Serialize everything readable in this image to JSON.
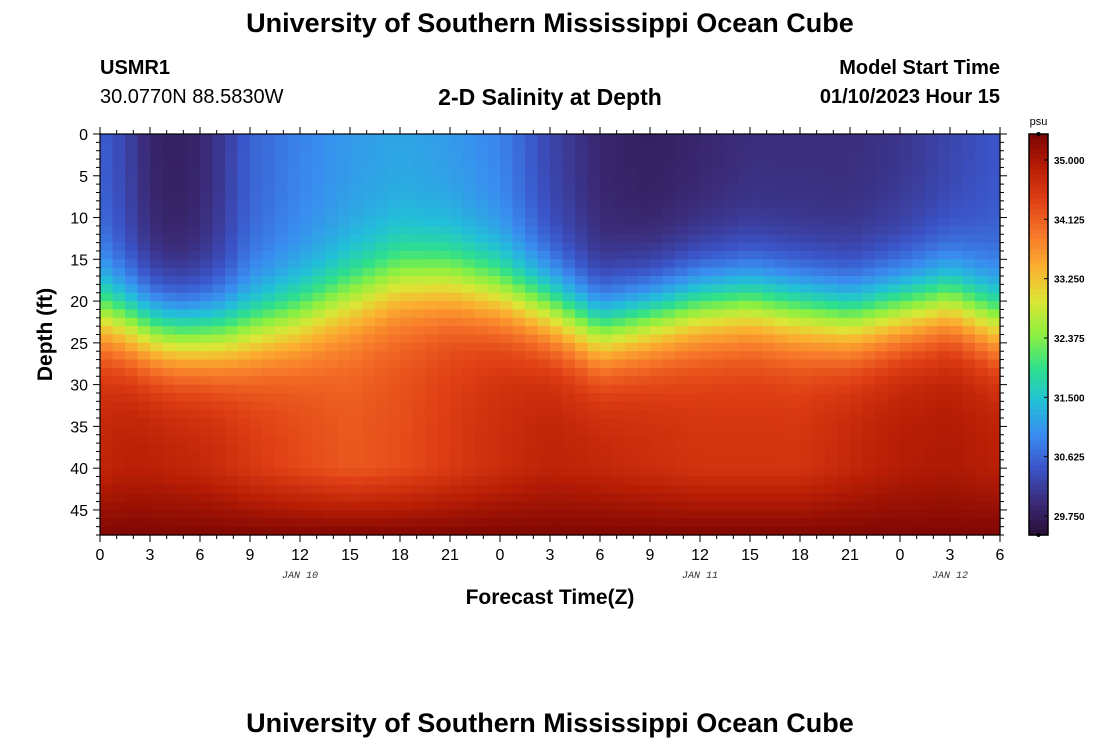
{
  "header": {
    "title": "University of Southern Mississippi Ocean Cube",
    "station": "USMR1",
    "coordinates": "30.0770N  88.5830W",
    "subtitle": "2-D Salinity at Depth",
    "start_label": "Model Start Time",
    "start_value": "01/10/2023 Hour 15"
  },
  "footer": {
    "title": "University of Southern Mississippi Ocean Cube"
  },
  "chart_data": {
    "type": "heatmap",
    "title": "2-D Salinity at Depth",
    "xlabel": "Forecast Time(Z)",
    "ylabel": "Depth (ft)",
    "x_ticks": [
      "0",
      "3",
      "6",
      "9",
      "12",
      "15",
      "18",
      "21",
      "0",
      "3",
      "6",
      "9",
      "12",
      "15",
      "18",
      "21",
      "0",
      "3",
      "6"
    ],
    "x_range_hours": [
      0,
      54
    ],
    "date_labels": [
      {
        "label": "JAN 10",
        "hour": 12
      },
      {
        "label": "JAN 11",
        "hour": 36
      },
      {
        "label": "JAN 12",
        "hour": 51
      }
    ],
    "y_ticks": [
      0,
      5,
      10,
      15,
      20,
      25,
      30,
      35,
      40,
      45
    ],
    "ylim": [
      0,
      48
    ],
    "colorbar": {
      "unit": "psu",
      "ticks": [
        "35.000",
        "34.125",
        "33.250",
        "32.375",
        "31.500",
        "30.625",
        "29.750"
      ],
      "range": [
        29.5,
        35.4
      ],
      "colors": [
        "#2a0e36",
        "#3b2c7a",
        "#3b54c8",
        "#3a8cf0",
        "#22c0d8",
        "#2fe08a",
        "#8ef040",
        "#dce636",
        "#fbb030",
        "#f7772a",
        "#e04015",
        "#b81e05",
        "#7a0403"
      ]
    },
    "salinity_model": {
      "time_hours": [
        0,
        1.5,
        3,
        4.5,
        6,
        7.5,
        9,
        12,
        15,
        18,
        21,
        24,
        27,
        30,
        33,
        36,
        39,
        42,
        45,
        48,
        51,
        54
      ],
      "surface_psu": [
        30.6,
        30.3,
        29.9,
        29.8,
        29.9,
        30.2,
        30.6,
        30.9,
        31.1,
        31.2,
        31.1,
        30.9,
        30.3,
        29.9,
        29.8,
        29.9,
        30.0,
        30.0,
        30.0,
        30.1,
        30.3,
        30.5
      ],
      "halocline_depth_ft": [
        21.5,
        22.5,
        23.5,
        24,
        24,
        24,
        23.5,
        22,
        19.5,
        17.5,
        17.5,
        19,
        21,
        23.5,
        22,
        20.5,
        20,
        21,
        22,
        21,
        20,
        22.5
      ],
      "deep_psu": [
        34.8,
        34.9,
        34.9,
        34.85,
        34.8,
        34.7,
        34.55,
        34.35,
        34.2,
        34.3,
        34.5,
        34.7,
        34.85,
        34.8,
        34.7,
        34.6,
        34.6,
        34.6,
        34.8,
        34.95,
        35.0,
        34.9
      ],
      "bottom_psu": 35.35
    }
  }
}
